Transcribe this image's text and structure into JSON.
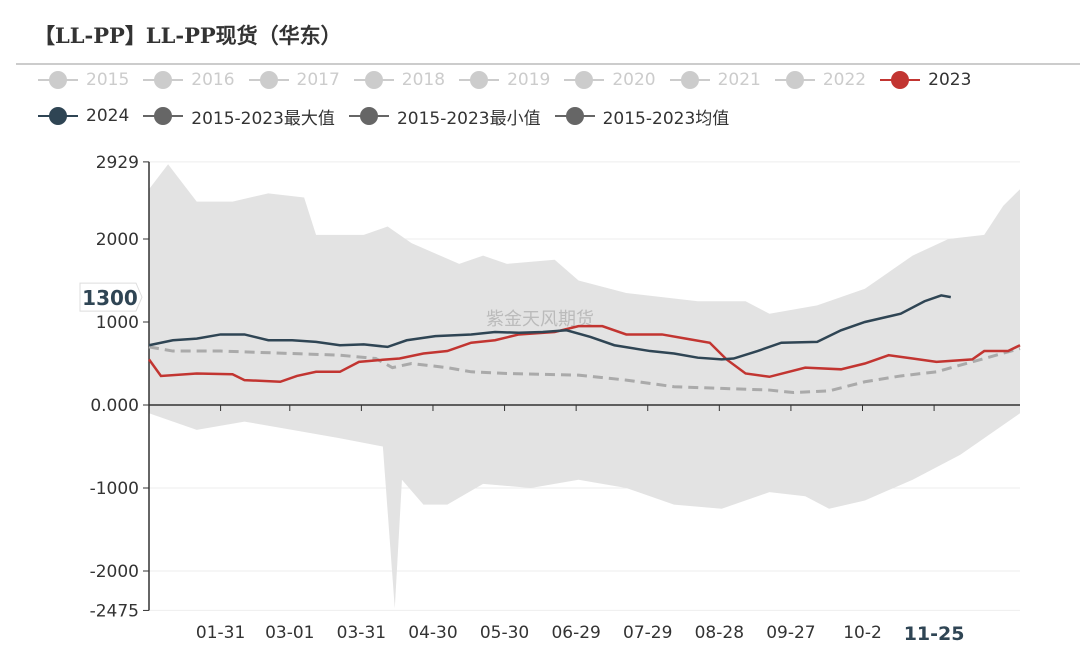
{
  "title": "【LL-PP】LL-PP现货（华东）",
  "watermark": "紫金天风期货",
  "legend": [
    {
      "label": "2015",
      "color": "#cccccc",
      "active": false
    },
    {
      "label": "2016",
      "color": "#cccccc",
      "active": false
    },
    {
      "label": "2017",
      "color": "#cccccc",
      "active": false
    },
    {
      "label": "2018",
      "color": "#cccccc",
      "active": false
    },
    {
      "label": "2019",
      "color": "#cccccc",
      "active": false
    },
    {
      "label": "2020",
      "color": "#cccccc",
      "active": false
    },
    {
      "label": "2021",
      "color": "#cccccc",
      "active": false
    },
    {
      "label": "2022",
      "color": "#cccccc",
      "active": false
    },
    {
      "label": "2023",
      "color": "#c23531",
      "active": true
    },
    {
      "label": "2024",
      "color": "#2f4554",
      "active": true
    },
    {
      "label": "2015-2023最大值",
      "color": "#666666",
      "active": true
    },
    {
      "label": "2015-2023最小值",
      "color": "#666666",
      "active": true
    },
    {
      "label": "2015-2023均值",
      "color": "#666666",
      "active": true
    }
  ],
  "chart_data": {
    "type": "line",
    "title": "【LL-PP】LL-PP现货（华东）",
    "x_unit": "day of year",
    "xlim": [
      0,
      365
    ],
    "ylim": [
      -2475,
      2929
    ],
    "y_ticks": [
      "2929",
      "2000",
      "1000",
      "0.000",
      "-1000",
      "-2000",
      "-2475"
    ],
    "y_tick_values": [
      2929,
      2000,
      1000,
      0,
      -1000,
      -2000,
      -2475
    ],
    "x_ticks": [
      "01-31",
      "03-01",
      "03-31",
      "04-30",
      "05-30",
      "06-29",
      "07-29",
      "08-28",
      "09-27",
      "10-2"
    ],
    "x_tick_days": [
      30,
      59,
      89,
      119,
      149,
      179,
      209,
      239,
      269,
      299
    ],
    "highlight_x": {
      "label": "11-25",
      "day": 329
    },
    "highlight_y": {
      "label": "1300",
      "value": 1300
    },
    "band": {
      "name": "2015-2023最大值/最小值",
      "max": [
        [
          0,
          2600
        ],
        [
          8,
          2900
        ],
        [
          12,
          2750
        ],
        [
          20,
          2450
        ],
        [
          35,
          2450
        ],
        [
          50,
          2550
        ],
        [
          65,
          2500
        ],
        [
          70,
          2050
        ],
        [
          90,
          2050
        ],
        [
          100,
          2150
        ],
        [
          110,
          1950
        ],
        [
          130,
          1700
        ],
        [
          140,
          1800
        ],
        [
          150,
          1700
        ],
        [
          170,
          1750
        ],
        [
          180,
          1500
        ],
        [
          200,
          1350
        ],
        [
          230,
          1250
        ],
        [
          250,
          1250
        ],
        [
          260,
          1100
        ],
        [
          280,
          1200
        ],
        [
          300,
          1400
        ],
        [
          320,
          1800
        ],
        [
          335,
          2000
        ],
        [
          350,
          2050
        ],
        [
          358,
          2400
        ],
        [
          365,
          2600
        ]
      ],
      "min": [
        [
          0,
          -100
        ],
        [
          20,
          -300
        ],
        [
          40,
          -200
        ],
        [
          60,
          -300
        ],
        [
          80,
          -400
        ],
        [
          98,
          -500
        ],
        [
          103,
          -2450
        ],
        [
          106,
          -900
        ],
        [
          115,
          -1200
        ],
        [
          125,
          -1200
        ],
        [
          140,
          -950
        ],
        [
          160,
          -1000
        ],
        [
          180,
          -900
        ],
        [
          200,
          -1000
        ],
        [
          220,
          -1200
        ],
        [
          240,
          -1250
        ],
        [
          260,
          -1050
        ],
        [
          275,
          -1100
        ],
        [
          285,
          -1250
        ],
        [
          300,
          -1150
        ],
        [
          320,
          -900
        ],
        [
          340,
          -600
        ],
        [
          355,
          -300
        ],
        [
          365,
          -100
        ]
      ]
    },
    "series": [
      {
        "name": "2015-2023均值",
        "color": "#aaaaaa",
        "dashed": true,
        "points": [
          [
            0,
            700
          ],
          [
            10,
            650
          ],
          [
            30,
            650
          ],
          [
            60,
            620
          ],
          [
            80,
            600
          ],
          [
            95,
            560
          ],
          [
            102,
            450
          ],
          [
            110,
            500
          ],
          [
            125,
            450
          ],
          [
            135,
            400
          ],
          [
            150,
            380
          ],
          [
            165,
            370
          ],
          [
            180,
            360
          ],
          [
            200,
            300
          ],
          [
            220,
            220
          ],
          [
            240,
            200
          ],
          [
            260,
            180
          ],
          [
            270,
            150
          ],
          [
            285,
            170
          ],
          [
            300,
            280
          ],
          [
            315,
            350
          ],
          [
            330,
            400
          ],
          [
            345,
            520
          ],
          [
            355,
            600
          ],
          [
            365,
            680
          ]
        ]
      },
      {
        "name": "2023",
        "color": "#c23531",
        "points": [
          [
            0,
            550
          ],
          [
            5,
            350
          ],
          [
            20,
            380
          ],
          [
            35,
            370
          ],
          [
            40,
            300
          ],
          [
            55,
            280
          ],
          [
            62,
            350
          ],
          [
            70,
            400
          ],
          [
            80,
            400
          ],
          [
            88,
            520
          ],
          [
            100,
            550
          ],
          [
            105,
            560
          ],
          [
            115,
            620
          ],
          [
            125,
            650
          ],
          [
            135,
            750
          ],
          [
            145,
            780
          ],
          [
            155,
            850
          ],
          [
            170,
            880
          ],
          [
            180,
            950
          ],
          [
            190,
            950
          ],
          [
            200,
            850
          ],
          [
            215,
            850
          ],
          [
            225,
            800
          ],
          [
            235,
            750
          ],
          [
            242,
            550
          ],
          [
            250,
            380
          ],
          [
            260,
            340
          ],
          [
            275,
            450
          ],
          [
            290,
            430
          ],
          [
            300,
            500
          ],
          [
            310,
            600
          ],
          [
            320,
            560
          ],
          [
            330,
            520
          ],
          [
            345,
            550
          ],
          [
            350,
            650
          ],
          [
            360,
            650
          ],
          [
            365,
            720
          ]
        ]
      },
      {
        "name": "2024",
        "color": "#2f4554",
        "points": [
          [
            0,
            720
          ],
          [
            10,
            780
          ],
          [
            20,
            800
          ],
          [
            30,
            850
          ],
          [
            40,
            850
          ],
          [
            50,
            780
          ],
          [
            60,
            780
          ],
          [
            70,
            760
          ],
          [
            80,
            720
          ],
          [
            90,
            730
          ],
          [
            100,
            700
          ],
          [
            108,
            780
          ],
          [
            120,
            830
          ],
          [
            135,
            850
          ],
          [
            145,
            880
          ],
          [
            155,
            870
          ],
          [
            165,
            880
          ],
          [
            175,
            900
          ],
          [
            185,
            820
          ],
          [
            195,
            720
          ],
          [
            210,
            650
          ],
          [
            220,
            620
          ],
          [
            230,
            570
          ],
          [
            240,
            550
          ],
          [
            245,
            560
          ],
          [
            255,
            650
          ],
          [
            265,
            750
          ],
          [
            280,
            760
          ],
          [
            290,
            900
          ],
          [
            300,
            1000
          ],
          [
            315,
            1100
          ],
          [
            325,
            1250
          ],
          [
            332,
            1320
          ],
          [
            336,
            1300
          ]
        ]
      }
    ]
  }
}
